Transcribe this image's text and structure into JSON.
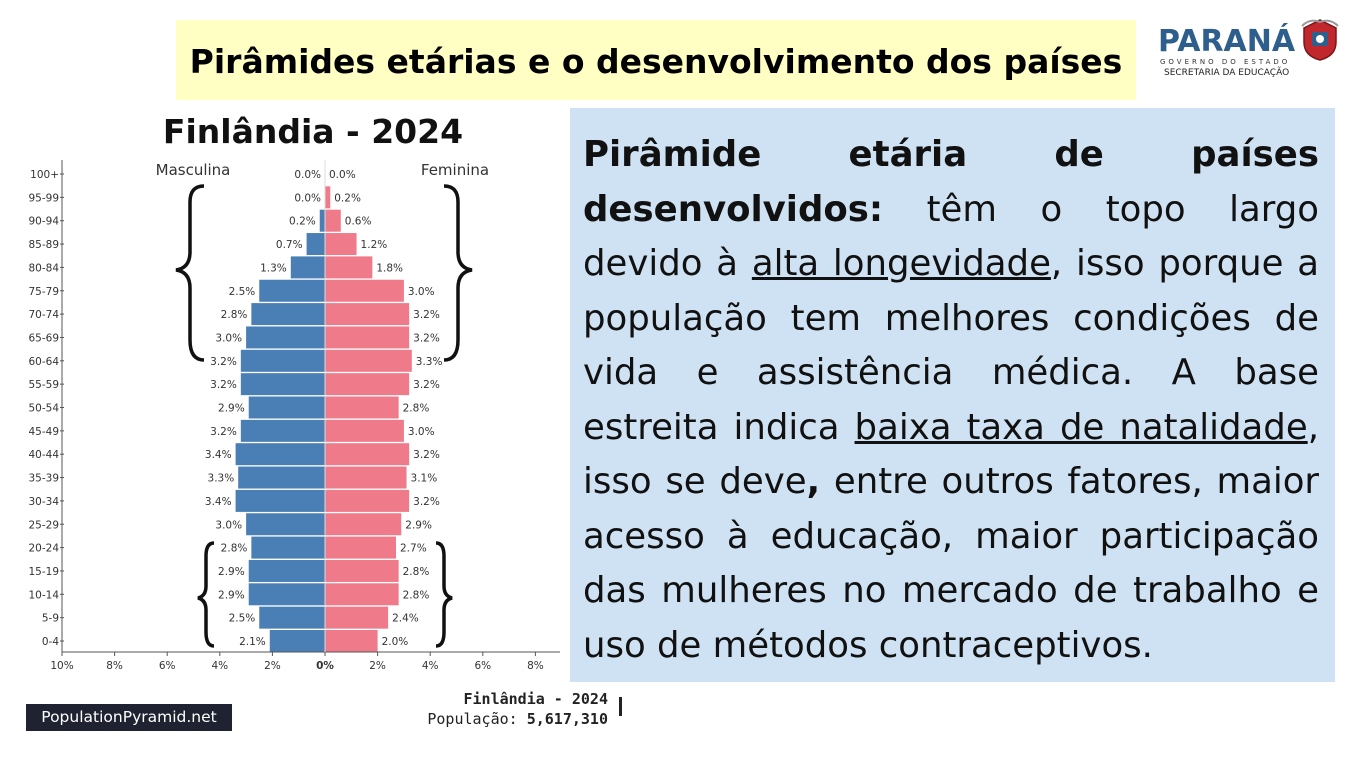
{
  "header": {
    "title": "Pirâmides etárias e o desenvolvimento dos países"
  },
  "logo": {
    "name": "PARANÁ",
    "subtitle": "GOVERNO DO ESTADO",
    "department": "SECRETARIA DA EDUCAÇÃO",
    "colors": {
      "word": "#2e5f8c",
      "crest_red": "#c0282d"
    }
  },
  "chart_data": {
    "type": "bar",
    "title": "Finlândia - 2024",
    "orientation": "horizontal-population-pyramid",
    "left_label": "Masculina",
    "right_label": "Feminina",
    "categories": [
      "100+",
      "95-99",
      "90-94",
      "85-89",
      "80-84",
      "75-79",
      "70-74",
      "65-69",
      "60-64",
      "55-59",
      "50-54",
      "45-49",
      "40-44",
      "35-39",
      "30-34",
      "25-29",
      "20-24",
      "15-19",
      "10-14",
      "5-9",
      "0-4"
    ],
    "series": [
      {
        "name": "Masculina",
        "values": [
          0.0,
          0.0,
          0.2,
          0.7,
          1.3,
          2.5,
          2.8,
          3.0,
          3.2,
          3.2,
          2.9,
          3.2,
          3.4,
          3.3,
          3.4,
          3.0,
          2.8,
          2.9,
          2.9,
          2.5,
          2.1
        ],
        "color": "#4a7fb5"
      },
      {
        "name": "Feminina",
        "values": [
          0.0,
          0.2,
          0.6,
          1.2,
          1.8,
          3.0,
          3.2,
          3.2,
          3.3,
          3.2,
          2.8,
          3.0,
          3.2,
          3.1,
          3.2,
          2.9,
          2.7,
          2.8,
          2.8,
          2.4,
          2.0
        ],
        "color": "#ee7a8a"
      }
    ],
    "value_labels": {
      "male": [
        "0.0%",
        "0.0%",
        "0.2%",
        "0.7%",
        "1.3%",
        "2.5%",
        "2.8%",
        "3.0%",
        "3.2%",
        "3.2%",
        "2.9%",
        "3.2%",
        "3.4%",
        "3.3%",
        "3.4%",
        "3.0%",
        "2.8%",
        "2.9%",
        "2.9%",
        "2.5%",
        "2.1%"
      ],
      "female": [
        "0.0%",
        "0.2%",
        "0.6%",
        "1.2%",
        "1.8%",
        "3.0%",
        "3.2%",
        "3.2%",
        "3.3%",
        "3.2%",
        "2.8%",
        "3.0%",
        "3.2%",
        "3.1%",
        "3.2%",
        "2.9%",
        "2.7%",
        "2.8%",
        "2.8%",
        "2.4%",
        "2.0%"
      ]
    },
    "x_ticks_left": [
      "10%",
      "8%",
      "6%",
      "4%",
      "2%"
    ],
    "x_tick_center": "0%",
    "x_ticks_right": [
      "2%",
      "4%",
      "6%",
      "8%"
    ],
    "xlim": [
      -10,
      8.5
    ],
    "brace_groups": [
      [
        "95-99",
        "60-64"
      ],
      [
        "20-24",
        "0-4"
      ]
    ]
  },
  "info": {
    "bold_lead": "Pirâmide etária de países desenvolvidos:",
    "part1": " têm o topo largo devido à ",
    "underline1": "alta longevidade",
    "part2": ", isso porque a população tem melhores condições de vida e assistência médica. A base estreita indica ",
    "underline2": "baixa taxa de natalidade",
    "part3": ", isso se deve",
    "comma": ",",
    "part4": " entre outros fatores, maior acesso à educação, maior participação das mulheres no mercado de trabalho e uso de métodos contraceptivos."
  },
  "footer": {
    "badge": "PopulationPyramid.net",
    "country_year": "Finlândia - 2024",
    "population_label": "População: ",
    "population_value": "5,617,310"
  }
}
